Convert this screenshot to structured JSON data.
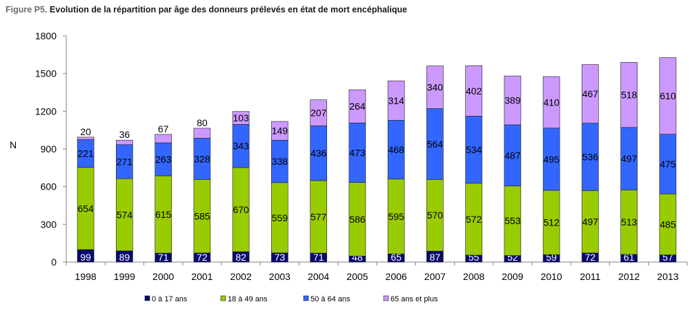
{
  "figure": {
    "label": "Figure P5.",
    "title": "Evolution de la répartition par âge des donneurs prélevés en état de mort encéphalique"
  },
  "chart_data": {
    "type": "bar",
    "stacked": true,
    "categories": [
      "1998",
      "1999",
      "2000",
      "2001",
      "2002",
      "2003",
      "2004",
      "2005",
      "2006",
      "2007",
      "2008",
      "2009",
      "2010",
      "2011",
      "2012",
      "2013"
    ],
    "series": [
      {
        "name": "0 à 17 ans",
        "color": "#0a0a6e",
        "values": [
          99,
          89,
          71,
          72,
          82,
          73,
          71,
          48,
          65,
          87,
          55,
          52,
          59,
          72,
          61,
          57
        ]
      },
      {
        "name": "18 à 49 ans",
        "color": "#99cc00",
        "values": [
          654,
          574,
          615,
          585,
          670,
          559,
          577,
          586,
          595,
          570,
          572,
          553,
          512,
          497,
          513,
          485
        ]
      },
      {
        "name": "50 à 64 ans",
        "color": "#3366ff",
        "values": [
          221,
          271,
          263,
          328,
          343,
          338,
          436,
          473,
          468,
          564,
          534,
          487,
          495,
          536,
          497,
          475
        ]
      },
      {
        "name": "65 ans et plus",
        "color": "#cc99ff",
        "values": [
          20,
          36,
          67,
          80,
          103,
          149,
          207,
          264,
          314,
          340,
          402,
          389,
          410,
          467,
          518,
          610
        ]
      }
    ],
    "ylabel": "N",
    "ylim": [
      0,
      1800
    ],
    "yticks": [
      0,
      300,
      600,
      900,
      1200,
      1500,
      1800
    ],
    "grid": false,
    "legend_position": "bottom"
  }
}
